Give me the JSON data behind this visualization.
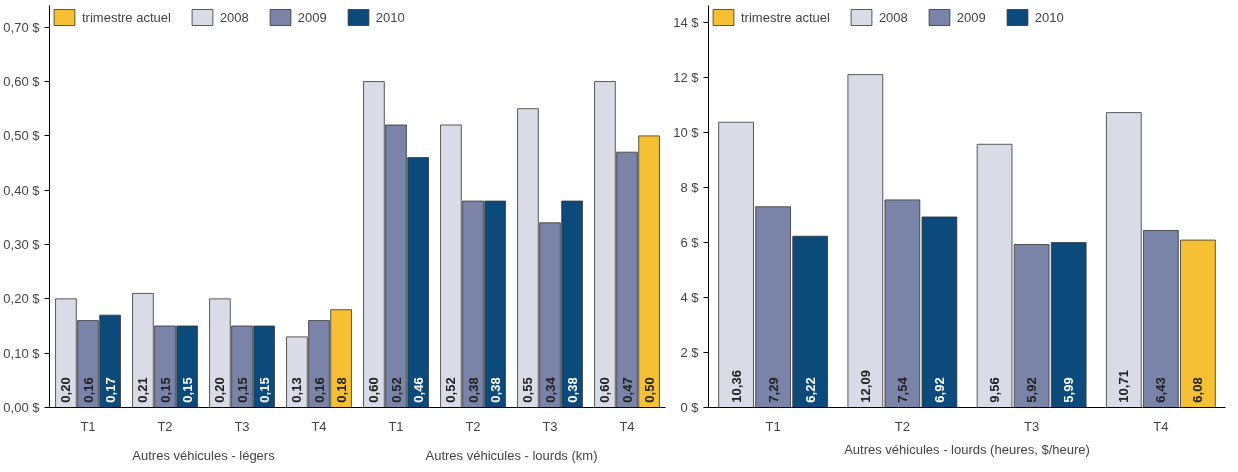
{
  "chart_data": [
    {
      "type": "bar",
      "categories": [
        "T1",
        "T2",
        "T3",
        "T4",
        "T1",
        "T2",
        "T3",
        "T4"
      ],
      "series": [
        {
          "name": "trimestre actuel",
          "color": "#f5c033",
          "values": [
            null,
            null,
            null,
            0.18,
            null,
            null,
            null,
            0.5
          ],
          "value_labels": [
            null,
            null,
            null,
            "0,18",
            null,
            null,
            null,
            "0,50"
          ]
        },
        {
          "name": "2008",
          "color": "#d9dbe6",
          "values": [
            0.2,
            0.21,
            0.2,
            0.13,
            0.6,
            0.52,
            0.55,
            0.6
          ],
          "value_labels": [
            "0,20",
            "0,21",
            "0,20",
            "0,13",
            "0,60",
            "0,52",
            "0,55",
            "0,60"
          ]
        },
        {
          "name": "2009",
          "color": "#7a83a8",
          "values": [
            0.16,
            0.15,
            0.15,
            0.16,
            0.52,
            0.38,
            0.34,
            0.47
          ],
          "value_labels": [
            "0,16",
            "0,15",
            "0,15",
            "0,16",
            "0,52",
            "0,38",
            "0,34",
            "0,47"
          ]
        },
        {
          "name": "2010",
          "color": "#0b4a7a",
          "values": [
            0.17,
            0.15,
            0.15,
            null,
            0.46,
            0.38,
            0.38,
            null
          ],
          "value_labels": [
            "0,17",
            "0,15",
            "0,15",
            null,
            "0,46",
            "0,38",
            "0,38",
            null
          ]
        }
      ],
      "ylim": [
        0,
        0.74
      ],
      "yticks": [
        {
          "value": 0,
          "label": "0,00 $"
        },
        {
          "value": 0.1,
          "label": "0,10 $"
        },
        {
          "value": 0.2,
          "label": "0,20 $"
        },
        {
          "value": 0.3,
          "label": "0,30 $"
        },
        {
          "value": 0.4,
          "label": "0,40 $"
        },
        {
          "value": 0.5,
          "label": "0,50 $"
        },
        {
          "value": 0.6,
          "label": "0,60 $"
        },
        {
          "value": 0.7,
          "label": "0,70 $"
        }
      ],
      "annotations": [
        "Autres véhicules - légers",
        "Autres véhicules - lourds (km)"
      ],
      "legend": "top",
      "grid": false
    },
    {
      "type": "bar",
      "categories": [
        "T1",
        "T2",
        "T3",
        "T4"
      ],
      "series": [
        {
          "name": "trimestre actuel",
          "color": "#f5c033",
          "values": [
            null,
            null,
            null,
            6.08
          ],
          "value_labels": [
            null,
            null,
            null,
            "6,08"
          ]
        },
        {
          "name": "2008",
          "color": "#d9dbe6",
          "values": [
            10.36,
            12.09,
            9.56,
            10.71
          ],
          "value_labels": [
            "10,36",
            "12,09",
            "9,56",
            "10,71"
          ]
        },
        {
          "name": "2009",
          "color": "#7a83a8",
          "values": [
            7.29,
            7.54,
            5.92,
            6.43
          ],
          "value_labels": [
            "7,29",
            "7,54",
            "5,92",
            "6,43"
          ]
        },
        {
          "name": "2010",
          "color": "#0b4a7a",
          "values": [
            6.22,
            6.92,
            5.99,
            null
          ],
          "value_labels": [
            "6,22",
            "6,92",
            "5,99",
            null
          ]
        }
      ],
      "ylim": [
        0,
        14.6
      ],
      "yticks": [
        {
          "value": 0,
          "label": "0 $"
        },
        {
          "value": 2,
          "label": "2 $"
        },
        {
          "value": 4,
          "label": "4 $"
        },
        {
          "value": 6,
          "label": "6 $"
        },
        {
          "value": 8,
          "label": "8 $"
        },
        {
          "value": 10,
          "label": "10 $"
        },
        {
          "value": 12,
          "label": "12 $"
        },
        {
          "value": 14,
          "label": "14 $"
        }
      ],
      "xlabel": "Autres véhicules - lourds (heures, $/heure)",
      "legend": "top",
      "grid": false
    }
  ]
}
